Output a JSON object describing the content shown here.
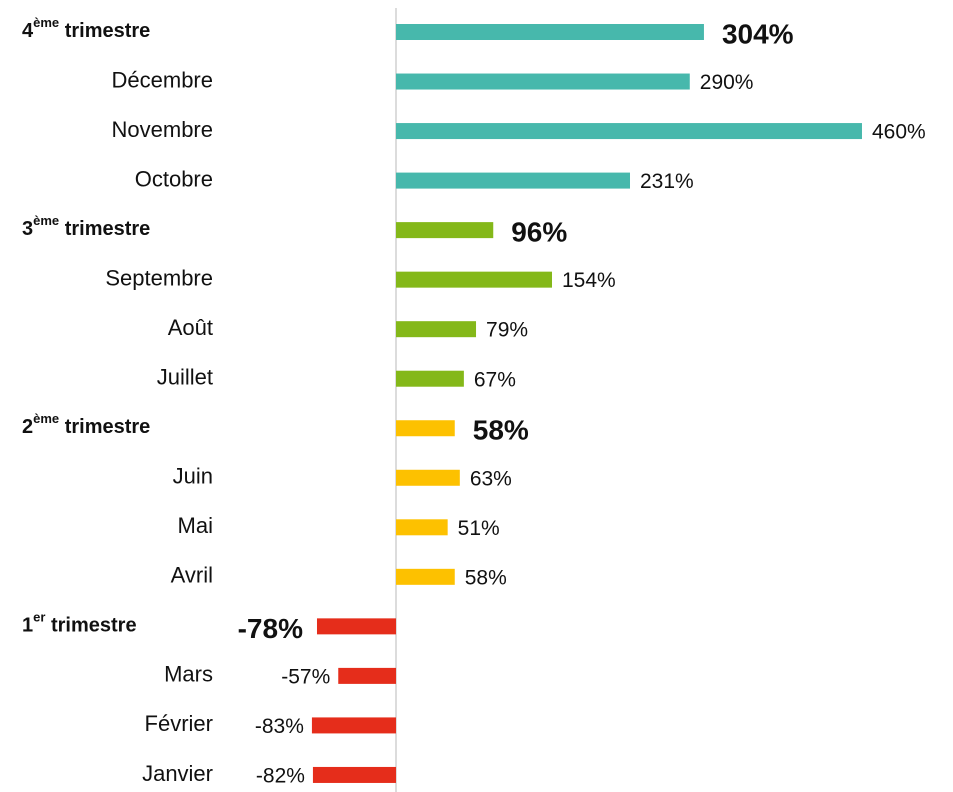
{
  "chart_data": {
    "type": "bar",
    "orientation": "horizontal",
    "categories": [
      "4ème trimestre",
      "Décembre",
      "Novembre",
      "Octobre",
      "3ème trimestre",
      "Septembre",
      "Août",
      "Juillet",
      "2ème trimestre",
      "Juin",
      "Mai",
      "Avril",
      "1er trimestre",
      "Mars",
      "Février",
      "Janvier"
    ],
    "values": [
      304,
      290,
      460,
      231,
      96,
      154,
      79,
      67,
      58,
      63,
      51,
      58,
      -78,
      -57,
      -83,
      -82
    ],
    "value_labels": [
      "304%",
      "290%",
      "460%",
      "231%",
      "96%",
      "154%",
      "79%",
      "67%",
      "58%",
      "63%",
      "51%",
      "58%",
      "-78%",
      "-57%",
      "-83%",
      "-82%"
    ],
    "colors": [
      "#47b8ac",
      "#47b8ac",
      "#47b8ac",
      "#47b8ac",
      "#84b819",
      "#84b819",
      "#84b819",
      "#84b819",
      "#fdc100",
      "#fdc100",
      "#fdc100",
      "#fdc100",
      "#e52d1b",
      "#e52d1b",
      "#e52d1b",
      "#e52d1b"
    ],
    "highlight": [
      true,
      false,
      false,
      false,
      true,
      false,
      false,
      false,
      true,
      false,
      false,
      false,
      true,
      false,
      false,
      false
    ],
    "xlim": [
      -100,
      500
    ]
  }
}
